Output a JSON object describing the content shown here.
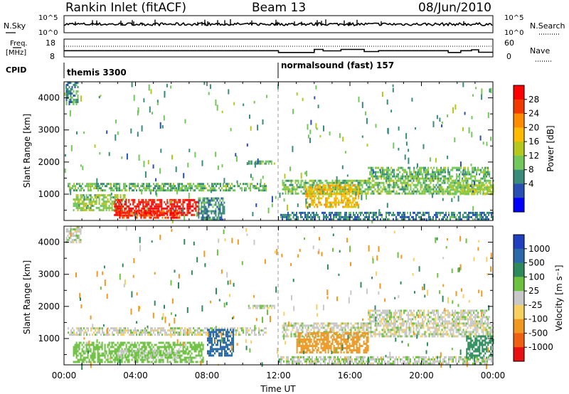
{
  "header": {
    "station": "Rankin Inlet (fitACF)",
    "beam": "Beam 13",
    "date": "08/Jun/2010"
  },
  "noise_panel": {
    "left_label": "N.Sky",
    "right_label": "N.Search",
    "left_ticks": [
      "10^5",
      "10^0"
    ],
    "right_ticks": [
      "10^5",
      "10^0"
    ]
  },
  "freq_panel": {
    "left_label_line1": "Freq.",
    "left_label_line2": "[MHz]",
    "right_label": "Nave",
    "left_ticks": [
      "18",
      "8"
    ],
    "right_ticks": [
      "60",
      "0"
    ],
    "freq_steps": [
      {
        "start_hr": 0.0,
        "end_hr": 12.0,
        "value": 11.5
      },
      {
        "start_hr": 12.0,
        "end_hr": 14.0,
        "value": 10.5
      },
      {
        "start_hr": 14.0,
        "end_hr": 14.5,
        "value": 12.2
      },
      {
        "start_hr": 14.5,
        "end_hr": 15.5,
        "value": 11.4
      },
      {
        "start_hr": 15.5,
        "end_hr": 16.8,
        "value": 12.2
      },
      {
        "start_hr": 16.8,
        "end_hr": 17.6,
        "value": 11.0
      },
      {
        "start_hr": 17.6,
        "end_hr": 21.5,
        "value": 11.5
      },
      {
        "start_hr": 21.5,
        "end_hr": 22.2,
        "value": 10.5
      },
      {
        "start_hr": 22.2,
        "end_hr": 22.8,
        "value": 11.5
      },
      {
        "start_hr": 22.8,
        "end_hr": 23.2,
        "value": 12.0
      },
      {
        "start_hr": 23.2,
        "end_hr": 24.0,
        "value": 10.6
      }
    ],
    "nave_level": 55
  },
  "cpid": {
    "label": "CPID",
    "segments": [
      {
        "start_hr": 0.0,
        "name": "themis 3300"
      },
      {
        "start_hr": 12.0,
        "name": "normalsound (fast) 157"
      }
    ]
  },
  "x_axis": {
    "label": "Time UT",
    "ticks": [
      "00:00",
      "04:00",
      "08:00",
      "12:00",
      "16:00",
      "20:00",
      "00:00"
    ],
    "range_hr": [
      0,
      24
    ]
  },
  "colorbars": {
    "power": {
      "label": "Power [dB]",
      "ticks": [
        "28",
        "24",
        "20",
        "16",
        "12",
        "8",
        "4"
      ],
      "colors": [
        "#ff0000",
        "#f23a00",
        "#ff8c00",
        "#ffbb00",
        "#b5c81e",
        "#72c85a",
        "#3a8c7a",
        "#2850b4",
        "#0000ff"
      ]
    },
    "velocity": {
      "label": "Velocity [m s⁻¹]",
      "ticks": [
        "1000",
        "500",
        "100",
        "25",
        "-25",
        "-100",
        "-500",
        "-1000"
      ],
      "colors": [
        "#2040c0",
        "#2a6aa8",
        "#2e8a5a",
        "#6cc23c",
        "#c8c8c8",
        "#f8d060",
        "#f09820",
        "#f06010",
        "#e81010"
      ]
    }
  },
  "chart_data": [
    {
      "type": "heatmap",
      "title": "",
      "ylabel": "Slant Range [km]",
      "xlabel": "",
      "x_range_hr": [
        0,
        24
      ],
      "ylim": [
        180,
        4500
      ],
      "y_ticks": [
        "4000",
        "3000",
        "2000",
        "1000"
      ],
      "quantity": "Power [dB]",
      "regions": [
        {
          "t0": 0.2,
          "t1": 11.3,
          "r0": 1150,
          "r1": 1350,
          "value": 9
        },
        {
          "t0": 0.5,
          "t1": 3.5,
          "r0": 500,
          "r1": 1000,
          "value": 11
        },
        {
          "t0": 2.8,
          "t1": 7.5,
          "r0": 350,
          "r1": 850,
          "value": 30
        },
        {
          "t0": 3.0,
          "t1": 6.5,
          "r0": 250,
          "r1": 500,
          "value": 27
        },
        {
          "t0": 0.1,
          "t1": 0.8,
          "r0": 3800,
          "r1": 4500,
          "value": 6
        },
        {
          "t0": 10.3,
          "t1": 11.8,
          "r0": 1950,
          "r1": 2050,
          "value": 9
        },
        {
          "t0": 7.5,
          "t1": 9.0,
          "r0": 200,
          "r1": 900,
          "value": 6
        },
        {
          "t0": 12.2,
          "t1": 24.0,
          "r0": 1050,
          "r1": 1450,
          "value": 10
        },
        {
          "t0": 13.5,
          "t1": 16.5,
          "r0": 600,
          "r1": 1300,
          "value": 18
        },
        {
          "t0": 12.1,
          "t1": 24.0,
          "r0": 250,
          "r1": 450,
          "value": 5
        },
        {
          "t0": 17.0,
          "t1": 23.8,
          "r0": 1500,
          "r1": 1850,
          "value": 9
        },
        {
          "t0": 21.5,
          "t1": 24.0,
          "r0": 1000,
          "r1": 1300,
          "value": 13
        }
      ]
    },
    {
      "type": "heatmap",
      "title": "",
      "ylabel": "Slant Range [km]",
      "xlabel": "Time UT",
      "x_range_hr": [
        0,
        24
      ],
      "ylim": [
        180,
        4500
      ],
      "y_ticks": [
        "4000",
        "3000",
        "2000",
        "1000"
      ],
      "quantity": "Velocity [m s⁻¹]",
      "regions": [
        {
          "t0": 0.2,
          "t1": 11.3,
          "r0": 1150,
          "r1": 1350,
          "value": 0
        },
        {
          "t0": 0.5,
          "t1": 7.8,
          "r0": 250,
          "r1": 900,
          "value": 60
        },
        {
          "t0": 3.0,
          "t1": 6.5,
          "r0": 400,
          "r1": 650,
          "value": 20
        },
        {
          "t0": 0.1,
          "t1": 0.9,
          "r0": 4000,
          "r1": 4500,
          "value": 0
        },
        {
          "t0": 8.0,
          "t1": 9.5,
          "r0": 500,
          "r1": 1300,
          "value": 600
        },
        {
          "t0": 10.3,
          "t1": 11.8,
          "r0": 1950,
          "r1": 2050,
          "value": 0
        },
        {
          "t0": 12.2,
          "t1": 24.0,
          "r0": 1100,
          "r1": 1500,
          "value": 0
        },
        {
          "t0": 13.0,
          "t1": 17.0,
          "r0": 600,
          "r1": 1200,
          "value": -300
        },
        {
          "t0": 12.1,
          "t1": 24.0,
          "r0": 250,
          "r1": 450,
          "value": 10
        },
        {
          "t0": 17.0,
          "t1": 23.8,
          "r0": 1500,
          "r1": 1900,
          "value": 0
        },
        {
          "t0": 22.5,
          "t1": 24.0,
          "r0": 400,
          "r1": 1100,
          "value": 300
        }
      ]
    }
  ]
}
